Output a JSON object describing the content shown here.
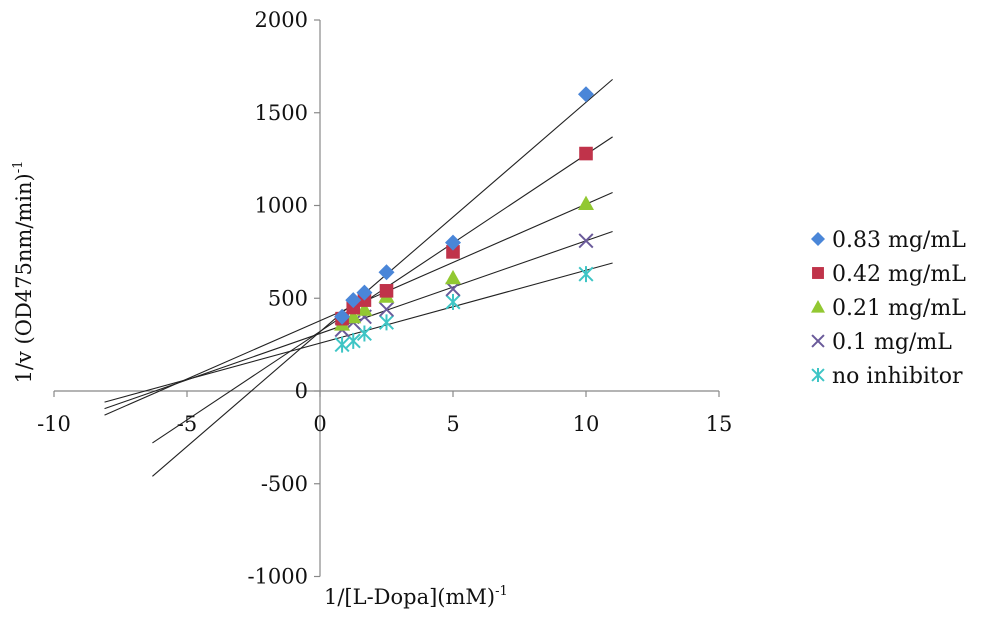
{
  "chart_data": {
    "type": "scatter",
    "title": "",
    "xlabel": "1/[L-Dopa](mM)",
    "xlabel_sup": "-1",
    "ylabel": "1/v (OD475nm/min)",
    "ylabel_sup": "-1",
    "xlim": [
      -10,
      15
    ],
    "ylim": [
      -1000,
      2000
    ],
    "xticks": [
      "-10",
      "-5",
      "0",
      "5",
      "10",
      "15"
    ],
    "yticks": [
      "2000",
      "1500",
      "1000",
      "500",
      "0",
      "-500",
      "-1000"
    ],
    "grid": false,
    "legend_position": "right",
    "series": [
      {
        "name": "0.83 mg/mL",
        "color": "#4A86D8",
        "marker": "diamond",
        "x": [
          0.83,
          1.25,
          1.67,
          2.5,
          5,
          10
        ],
        "y": [
          400,
          490,
          530,
          640,
          800,
          1600
        ],
        "fit_line": [
          [
            -6.3,
            -460
          ],
          [
            11,
            1680
          ]
        ]
      },
      {
        "name": "0.42 mg/mL",
        "color": "#C0334A",
        "marker": "square",
        "x": [
          0.83,
          1.25,
          1.67,
          2.5,
          5,
          10
        ],
        "y": [
          390,
          450,
          490,
          540,
          750,
          1280
        ],
        "fit_line": [
          [
            -6.3,
            -280
          ],
          [
            11,
            1370
          ]
        ]
      },
      {
        "name": "0.21 mg/mL",
        "color": "#92C832",
        "marker": "triangle",
        "x": [
          0.83,
          1.25,
          1.67,
          2.5,
          5,
          10
        ],
        "y": [
          360,
          400,
          440,
          510,
          610,
          1010
        ],
        "fit_line": [
          [
            -8.1,
            -130
          ],
          [
            11,
            1070
          ]
        ]
      },
      {
        "name": "0.1 mg/mL",
        "color": "#6A5A9A",
        "marker": "x",
        "x": [
          0.83,
          1.25,
          1.67,
          2.5,
          5,
          10
        ],
        "y": [
          330,
          370,
          400,
          440,
          550,
          810
        ],
        "fit_line": [
          [
            -8.1,
            -95
          ],
          [
            11,
            860
          ]
        ]
      },
      {
        "name": "no inhibitor",
        "color": "#3EC5C5",
        "marker": "asterisk",
        "x": [
          0.83,
          1.25,
          1.67,
          2.5,
          5,
          10
        ],
        "y": [
          250,
          270,
          310,
          370,
          480,
          630
        ],
        "fit_line": [
          [
            -8.1,
            -60
          ],
          [
            11,
            690
          ]
        ]
      }
    ]
  }
}
